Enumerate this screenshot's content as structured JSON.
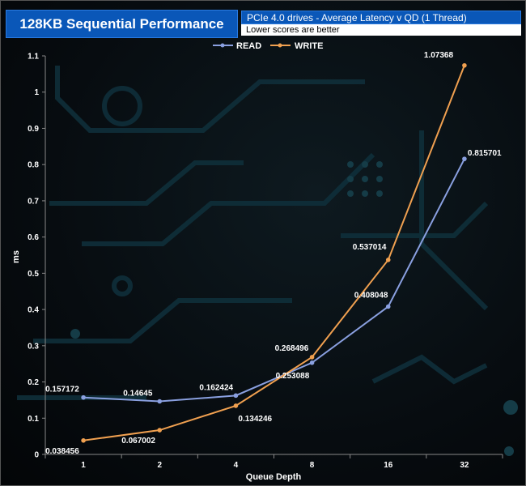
{
  "header": {
    "title": "128KB Sequential Performance",
    "subtitle": "PCIe 4.0 drives - Average Latency v QD (1 Thread)",
    "note": "Lower scores are better"
  },
  "colors": {
    "read": "#8aa0e0",
    "write": "#f0a050",
    "title_bg": "#0a57b8"
  },
  "chart_data": {
    "type": "line",
    "xlabel": "Queue Depth",
    "ylabel": "ms",
    "x": [
      "1",
      "2",
      "4",
      "8",
      "16",
      "32"
    ],
    "ylim": [
      0,
      1.1
    ],
    "yticks": [
      "0",
      "0.1",
      "0.2",
      "0.3",
      "0.4",
      "0.5",
      "0.6",
      "0.7",
      "0.8",
      "0.9",
      "1",
      "1.1"
    ],
    "legend_position": "top-center",
    "grid": false,
    "series": [
      {
        "name": "READ",
        "color": "#8aa0e0",
        "values": [
          0.157172,
          0.14645,
          0.162424,
          0.253088,
          0.408048,
          0.815701
        ],
        "labels": [
          "0.157172",
          "0.14645",
          "0.162424",
          "0.253088",
          "0.408048",
          "0.815701"
        ]
      },
      {
        "name": "WRITE",
        "color": "#f0a050",
        "values": [
          0.038456,
          0.067002,
          0.134246,
          0.268496,
          0.537014,
          1.07368
        ],
        "labels": [
          "0.038456",
          "0.067002",
          "0.134246",
          "0.268496",
          "0.537014",
          "1.07368"
        ]
      }
    ]
  }
}
